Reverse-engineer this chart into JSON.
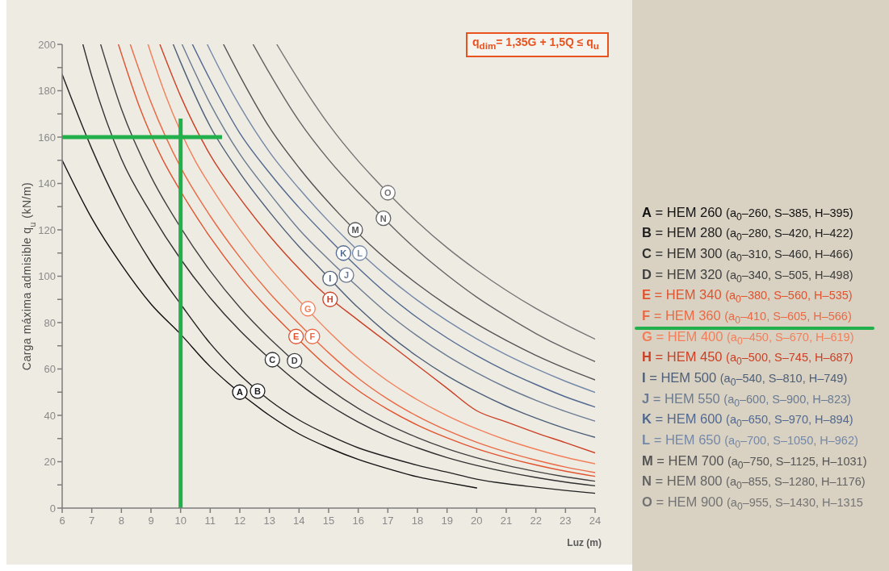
{
  "chart_data": {
    "type": "line",
    "xlabel": "Luz (m)",
    "ylabel": "Carga máxima admisible q$_{u}$ (kN/m)",
    "xlim": [
      6,
      24
    ],
    "xticks": [
      6,
      7,
      8,
      9,
      10,
      11,
      12,
      13,
      14,
      15,
      16,
      17,
      18,
      19,
      20,
      21,
      22,
      23,
      24
    ],
    "ylim": [
      0,
      200
    ],
    "yticks": [
      0,
      {
        "value": 10,
        "label": null
      },
      20,
      {
        "value": 30,
        "label": null
      },
      40,
      {
        "value": 50,
        "label": null
      },
      60,
      {
        "value": 70,
        "label": null
      },
      80,
      {
        "value": 90,
        "label": null
      },
      100,
      {
        "value": 110,
        "label": null
      },
      120,
      {
        "value": 130,
        "label": null
      },
      140,
      {
        "value": 150,
        "label": null
      },
      160,
      {
        "value": 170,
        "label": null
      },
      180,
      {
        "value": 190,
        "label": null
      },
      200
    ],
    "legend": "right",
    "series": [
      {
        "name": "A = HEM 260 (a$_{0}$–260, S–385, H–395)",
        "color": "#101010",
        "x": [
          6,
          7,
          8,
          9,
          10,
          11,
          11.6,
          13,
          14,
          15,
          16,
          17,
          18,
          19,
          20
        ],
        "values": [
          150,
          125,
          105,
          88,
          75,
          61,
          54,
          40,
          32,
          26,
          21,
          17,
          13.5,
          11,
          8.7
        ]
      },
      {
        "name": "B = HEM 280 (a$_{0}$–280, S–420, H–422)",
        "color": "#202020",
        "x": [
          6,
          7,
          8,
          9,
          10,
          11,
          12,
          13,
          14,
          15,
          16,
          17,
          18,
          19,
          20,
          21,
          22,
          23,
          24
        ],
        "values": [
          187,
          155,
          128,
          106,
          88,
          71,
          57.5,
          46.5,
          38,
          31.5,
          26,
          22,
          18.5,
          15.5,
          12.5,
          10.5,
          9,
          7.6,
          6.4
        ]
      },
      {
        "name": "C = HEM 300 (a$_{0}$–310, S–460, H–466)",
        "color": "#303030",
        "x": [
          6.7,
          7,
          8,
          9,
          10,
          11,
          12,
          12.6,
          13.6,
          14,
          15,
          16,
          17,
          18,
          19,
          20,
          21,
          22,
          23,
          24
        ],
        "values": [
          200,
          186.3,
          150.6,
          127.2,
          107.4,
          90.7,
          76.6,
          69.2,
          57.9,
          53.7,
          44.6,
          37.1,
          30.9,
          26,
          21.8,
          18.4,
          15.6,
          13.2,
          11.2,
          9.6
        ]
      },
      {
        "name": "D = HEM 320 (a$_{0}$–340, S–505, H–498)",
        "color": "#404040",
        "x": [
          7.3,
          8,
          9,
          10,
          11,
          12,
          13,
          14.35,
          15,
          16,
          17,
          18,
          19,
          20,
          21,
          22,
          23,
          24
        ],
        "values": [
          200,
          172.2,
          143,
          121,
          102.3,
          86.5,
          73.2,
          57.9,
          51.5,
          43,
          36.1,
          30.4,
          25.6,
          21.7,
          18.5,
          15.8,
          13.5,
          11.6
        ]
      },
      {
        "name": "E = HEM 340 (a$_{0}$–380, S–560, H–535)",
        "color": "#e0532f",
        "x": [
          7.9,
          8,
          8.6,
          9.4,
          10,
          11,
          12,
          13,
          13.5,
          15,
          16,
          17,
          18,
          19,
          20,
          21,
          22,
          23,
          24
        ],
        "values": [
          200,
          196,
          173.4,
          150.2,
          136.7,
          116.8,
          99.8,
          85.3,
          78.8,
          60.6,
          50.7,
          42.6,
          35.8,
          30.3,
          25.6,
          21.8,
          18.6,
          15.9,
          13.7
        ]
      },
      {
        "name": "F = HEM 360 (a$_{0}$–410, S–605, H–566)",
        "color": "#ea6a45",
        "x": [
          8.3,
          9,
          10,
          11,
          12,
          13,
          14,
          15,
          16,
          17,
          18,
          19,
          20,
          21,
          22,
          23,
          24
        ],
        "values": [
          200,
          175,
          147,
          126,
          108.2,
          92.8,
          79.5,
          67,
          56,
          47,
          39.6,
          33.5,
          28.4,
          24.2,
          20.7,
          17.7,
          15.3
        ]
      },
      {
        "name": "G = HEM 400 (a$_{0}$–450, S–670, H–619)",
        "color": "#f27f5a",
        "x": [
          8.9,
          9,
          9.5,
          10.5,
          11,
          12,
          13,
          13.8,
          15,
          16,
          17,
          18,
          19,
          20,
          21,
          22,
          23,
          24
        ],
        "values": [
          200,
          196.1,
          177.8,
          149.6,
          139.1,
          120.2,
          103.8,
          92.3,
          76.2,
          64.5,
          54.8,
          46.7,
          39.9,
          34.2,
          29.4,
          25.4,
          21.9,
          19.1
        ]
      },
      {
        "name": "H = HEM 450 (a$_{0}$–500, S–745, H–687)",
        "color": "#cc4025",
        "x": [
          9.3,
          10,
          11,
          12,
          13,
          14,
          14.6,
          16,
          17,
          18,
          19,
          20,
          21,
          22,
          23,
          24
        ],
        "values": [
          200,
          177.7,
          152.3,
          133.7,
          117.5,
          103.3,
          95.5,
          81,
          71.3,
          61.5,
          51.7,
          42,
          37.2,
          32.5,
          28.2,
          23.8
        ]
      },
      {
        "name": "I = HEM 500 (a$_{0}$–540, S–810, H–749)",
        "color": "#4d5f78",
        "x": [
          9.75,
          10,
          11,
          12,
          13,
          14,
          14.6,
          16,
          17,
          18,
          19,
          20,
          21,
          22,
          23,
          24
        ],
        "values": [
          200,
          192.3,
          164.6,
          144.6,
          127.8,
          112.8,
          104.8,
          86.4,
          75.1,
          65.4,
          57.1,
          50.1,
          44,
          38.8,
          34.3,
          30.5
        ]
      },
      {
        "name": "J = HEM 550 (a$_{0}$–600, S–900, H–823)",
        "color": "#6a7b92",
        "x": [
          10.05,
          11,
          12,
          13,
          14,
          15,
          16,
          17,
          18,
          19,
          20,
          21,
          22,
          23,
          24
        ],
        "values": [
          200,
          174.4,
          152.7,
          135.8,
          120.2,
          107.2,
          95.2,
          83.9,
          74.2,
          65.7,
          58.4,
          52,
          46.5,
          41.7,
          37.5
        ]
      },
      {
        "name": "K = HEM 600 (a$_{0}$–650, S–970, H–894)",
        "color": "#52698f",
        "x": [
          10.4,
          11,
          12,
          13,
          14,
          15,
          16,
          17,
          18,
          19,
          20,
          21,
          22,
          23,
          24
        ],
        "values": [
          200,
          184.7,
          161.7,
          144.6,
          129.6,
          116.2,
          103.6,
          92.1,
          82.1,
          73.4,
          65.8,
          59.1,
          53.3,
          48,
          43.6
        ]
      },
      {
        "name": "L = HEM 650 (a$_{0}$–700, S–1050, H–962)",
        "color": "#7488a8",
        "x": [
          10.9,
          11,
          12,
          13,
          14,
          15,
          15.6,
          17,
          18,
          19,
          20,
          21,
          22,
          23,
          24
        ],
        "values": [
          200,
          197.4,
          173.4,
          153.6,
          137.8,
          123.7,
          115.9,
          99.6,
          89.6,
          80.8,
          73,
          66.1,
          60.1,
          54.7,
          49.9
        ]
      },
      {
        "name": "M = HEM 700 (a$_{0}$–750, S–1125, H–1031)",
        "color": "#545454",
        "x": [
          11.45,
          12,
          13,
          14,
          15,
          15.4,
          16.4,
          17,
          18,
          19,
          20,
          21,
          22,
          23,
          24
        ],
        "values": [
          200,
          186.5,
          164.2,
          146.8,
          131.8,
          126.3,
          113.6,
          106.8,
          96.6,
          87.5,
          79.4,
          72.3,
          65.9,
          60.3,
          55.3
        ]
      },
      {
        "name": "N = HEM 800 (a$_{0}$–855, S–1280, H–1176)",
        "color": "#646464",
        "x": [
          12.45,
          13,
          14,
          15,
          16,
          16.4,
          17.4,
          18,
          19,
          20,
          21,
          22,
          23,
          24
        ],
        "values": [
          200,
          187.6,
          167,
          150.3,
          136.2,
          131,
          118.2,
          111.1,
          100.5,
          91,
          82.8,
          75.3,
          68.8,
          63.2
        ]
      },
      {
        "name": "O = HEM 900 (a$_{0}$–955, S–1430, H–1315",
        "color": "#747474",
        "x": [
          13.25,
          14,
          15,
          16,
          16.5,
          17.5,
          18,
          19,
          20,
          21,
          22,
          23,
          24
        ],
        "values": [
          200,
          184.4,
          165.5,
          149.7,
          142.7,
          129.5,
          123.4,
          112.3,
          102.6,
          93.9,
          86.1,
          79.2,
          72.9
        ]
      },
      {
        "color": "#21b04b",
        "x": [
          6,
          11.4
        ],
        "values": [
          160,
          160
        ]
      },
      {
        "color": "#21b04b",
        "x": [
          10,
          10
        ],
        "values": [
          0,
          168
        ]
      }
    ],
    "annotations": [
      {
        "text": "A",
        "x": 12,
        "y": 50
      },
      {
        "text": "B",
        "x": 12.6,
        "y": 50.5
      },
      {
        "text": "C",
        "x": 13.1,
        "y": 64
      },
      {
        "text": "D",
        "x": 13.85,
        "y": 63.5
      },
      {
        "text": "E",
        "x": 13.9,
        "y": 74
      },
      {
        "text": "F",
        "x": 14.45,
        "y": 74
      },
      {
        "text": "G",
        "x": 14.3,
        "y": 86
      },
      {
        "text": "H",
        "x": 15.05,
        "y": 90
      },
      {
        "text": "I",
        "x": 15.05,
        "y": 99
      },
      {
        "text": "J",
        "x": 15.6,
        "y": 100.5
      },
      {
        "text": "K",
        "x": 15.5,
        "y": 110
      },
      {
        "text": "L",
        "x": 16.05,
        "y": 110
      },
      {
        "text": "M",
        "x": 15.9,
        "y": 120
      },
      {
        "text": "N",
        "x": 16.85,
        "y": 125
      },
      {
        "text": "O",
        "x": 17,
        "y": 136
      },
      "q$_{dim}$= 1,35G + 1,5Q ≤ q$_{u}$"
    ]
  }
}
